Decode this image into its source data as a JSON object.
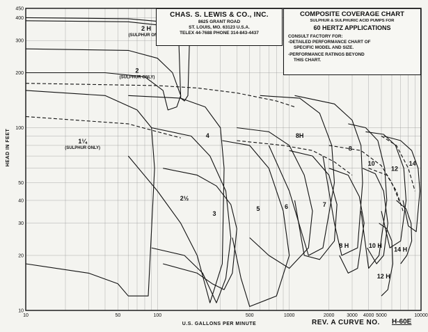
{
  "header": {
    "company": "CHAS. S. LEWIS & CO., INC.",
    "address1": "8625 GRANT ROAD",
    "address2": "ST. LOUIS, MO. 63123 U.S.A.",
    "address3": "TELEX 44-7688  PHONE 314-843-4437"
  },
  "title_box": {
    "title": "COMPOSITE COVERAGE CHART",
    "subtitle": "SULPHUR & SULPHURIC ACID PUMPS FOR",
    "frequency": "60 HERTZ APPLICATIONS",
    "note_head": "CONSULT FACTORY FOR:",
    "note1": "-DETAILED PERFORMANCE CHART OF",
    "note1b": "SPECIFIC MODEL AND SIZE.",
    "note2": "-PERFORMANCE RATINGS BEYOND",
    "note2b": "THIS CHART."
  },
  "footer": {
    "rev": "REV. A   CURVE NO.",
    "curve_no": "H-60E"
  },
  "chart_data": {
    "type": "line",
    "title": "COMPOSITE COVERAGE CHART",
    "xlabel": "U.S. GALLONS PER MINUTE",
    "ylabel": "HEAD IN FEET",
    "x_scale": "log",
    "y_scale": "log",
    "xlim": [
      10,
      10000
    ],
    "ylim": [
      10,
      450
    ],
    "x_ticks": [
      {
        "v": 10,
        "label": "10"
      },
      {
        "v": 50,
        "label": "50"
      },
      {
        "v": 100,
        "label": "100"
      },
      {
        "v": 500,
        "label": "500"
      },
      {
        "v": 1000,
        "label": "1000"
      },
      {
        "v": 2000,
        "label": "2000"
      },
      {
        "v": 3000,
        "label": "3000"
      },
      {
        "v": 4000,
        "label": "4000"
      },
      {
        "v": 5000,
        "label": "5000"
      },
      {
        "v": 10000,
        "label": "10000"
      }
    ],
    "y_ticks": [
      {
        "v": 10,
        "label": "10"
      },
      {
        "v": 20,
        "label": "20"
      },
      {
        "v": 30,
        "label": "30"
      },
      {
        "v": 40,
        "label": "40"
      },
      {
        "v": 50,
        "label": "50"
      },
      {
        "v": 100,
        "label": "100"
      },
      {
        "v": 200,
        "label": "200"
      },
      {
        "v": 300,
        "label": "300"
      },
      {
        "v": 400,
        "label": "400"
      },
      {
        "v": 450,
        "label": "450"
      }
    ],
    "grid": true,
    "series": [
      {
        "name": "2 H",
        "sub": "(SULPHUR ONLY)",
        "label_at": [
          82,
          340
        ],
        "dashed": false,
        "points": [
          [
            10,
            400
          ],
          [
            60,
            395
          ],
          [
            110,
            380
          ],
          [
            150,
            340
          ],
          [
            175,
            300
          ],
          [
            170,
            150
          ],
          [
            160,
            140
          ],
          [
            150,
            145
          ],
          [
            145,
            300
          ],
          [
            120,
            360
          ],
          [
            60,
            380
          ],
          [
            10,
            385
          ]
        ]
      },
      {
        "name": "2",
        "sub": "(SULPHUR ONLY)",
        "label_at": [
          70,
          200
        ],
        "dashed": false,
        "points": [
          [
            10,
            270
          ],
          [
            60,
            265
          ],
          [
            100,
            240
          ],
          [
            130,
            200
          ],
          [
            150,
            150
          ],
          [
            140,
            130
          ],
          [
            120,
            125
          ],
          [
            110,
            160
          ],
          [
            80,
            190
          ],
          [
            40,
            200
          ],
          [
            10,
            200
          ]
        ]
      },
      {
        "name": "1¼",
        "sub": "(SULPHUR ONLY)",
        "label_at": [
          27,
          82
        ],
        "dashed": false,
        "points": [
          [
            10,
            160
          ],
          [
            40,
            150
          ],
          [
            70,
            125
          ],
          [
            90,
            100
          ],
          [
            95,
            60
          ],
          [
            85,
            12
          ],
          [
            60,
            12
          ],
          [
            50,
            14
          ],
          [
            30,
            16
          ],
          [
            10,
            18
          ]
        ]
      },
      {
        "name": "4",
        "label_at": [
          240,
          88
        ],
        "dashed": false,
        "points": [
          [
            60,
            150
          ],
          [
            150,
            145
          ],
          [
            230,
            130
          ],
          [
            300,
            100
          ],
          [
            320,
            60
          ],
          [
            310,
            18
          ],
          [
            250,
            11
          ],
          [
            200,
            20
          ],
          [
            150,
            30
          ],
          [
            100,
            45
          ],
          [
            60,
            70
          ]
        ]
      },
      {
        "name": "2½",
        "label_at": [
          160,
          40
        ],
        "dashed": false,
        "points": [
          [
            90,
            100
          ],
          [
            180,
            90
          ],
          [
            250,
            70
          ],
          [
            330,
            45
          ],
          [
            360,
            25
          ],
          [
            330,
            15
          ],
          [
            280,
            11
          ],
          [
            220,
            16
          ],
          [
            160,
            20
          ],
          [
            90,
            22
          ]
        ]
      },
      {
        "name": "3",
        "label_at": [
          270,
          33
        ],
        "dashed": false,
        "points": [
          [
            110,
            60
          ],
          [
            200,
            55
          ],
          [
            280,
            48
          ],
          [
            360,
            38
          ],
          [
            400,
            28
          ],
          [
            370,
            16
          ],
          [
            320,
            13
          ],
          [
            260,
            14
          ],
          [
            200,
            16
          ],
          [
            110,
            18
          ]
        ]
      },
      {
        "name": "5",
        "label_at": [
          580,
          35
        ],
        "dashed": false,
        "points": [
          [
            310,
            85
          ],
          [
            500,
            80
          ],
          [
            700,
            60
          ],
          [
            900,
            35
          ],
          [
            1000,
            20
          ],
          [
            800,
            12
          ],
          [
            500,
            10.5
          ],
          [
            430,
            15
          ],
          [
            370,
            25
          ]
        ]
      },
      {
        "name": "6",
        "label_at": [
          950,
          36
        ],
        "dashed": false,
        "points": [
          [
            400,
            100
          ],
          [
            700,
            95
          ],
          [
            1000,
            80
          ],
          [
            1300,
            55
          ],
          [
            1500,
            35
          ],
          [
            1400,
            22
          ],
          [
            1000,
            17
          ],
          [
            700,
            20
          ],
          [
            500,
            25
          ]
        ]
      },
      {
        "name": "8H",
        "label_at": [
          1200,
          88
        ],
        "dashed": false,
        "points": [
          [
            600,
            150
          ],
          [
            1200,
            145
          ],
          [
            1700,
            120
          ],
          [
            2100,
            80
          ],
          [
            2200,
            50
          ],
          [
            1800,
            22
          ],
          [
            1400,
            20
          ],
          [
            1000,
            45
          ],
          [
            700,
            80
          ]
        ]
      },
      {
        "name": "7",
        "label_at": [
          1850,
          37
        ],
        "dashed": false,
        "points": [
          [
            1000,
            75
          ],
          [
            1500,
            70
          ],
          [
            2000,
            55
          ],
          [
            2300,
            38
          ],
          [
            2200,
            24
          ],
          [
            1700,
            19
          ],
          [
            1300,
            20
          ],
          [
            1100,
            40
          ]
        ]
      },
      {
        "name": "8",
        "label_at": [
          2900,
          75
        ],
        "dashed": false,
        "points": [
          [
            1100,
            150
          ],
          [
            2200,
            135
          ],
          [
            3000,
            110
          ],
          [
            3500,
            80
          ],
          [
            3600,
            50
          ],
          [
            3300,
            22
          ],
          [
            2500,
            20
          ],
          [
            2200,
            30
          ],
          [
            1800,
            70
          ]
        ]
      },
      {
        "name": "8 H",
        "label_at": [
          2600,
          22
        ],
        "dashed": false,
        "points": [
          [
            2000,
            60
          ],
          [
            2800,
            55
          ],
          [
            3400,
            42
          ],
          [
            3700,
            30
          ],
          [
            3300,
            17
          ],
          [
            2800,
            16
          ],
          [
            2400,
            20
          ]
        ]
      },
      {
        "name": "10",
        "label_at": [
          4200,
          62
        ],
        "dashed": false,
        "points": [
          [
            2800,
            105
          ],
          [
            3800,
            100
          ],
          [
            4700,
            85
          ],
          [
            5300,
            60
          ],
          [
            5500,
            40
          ],
          [
            4800,
            20
          ],
          [
            4000,
            17
          ],
          [
            3500,
            35
          ]
        ]
      },
      {
        "name": "10 H",
        "label_at": [
          4500,
          22
        ],
        "dashed": false,
        "points": [
          [
            3600,
            60
          ],
          [
            4500,
            56
          ],
          [
            5200,
            45
          ],
          [
            5600,
            30
          ],
          [
            5200,
            20
          ],
          [
            4600,
            18
          ],
          [
            3900,
            22
          ]
        ]
      },
      {
        "name": "12",
        "label_at": [
          6300,
          58
        ],
        "dashed": false,
        "points": [
          [
            3800,
            95
          ],
          [
            5200,
            92
          ],
          [
            6400,
            80
          ],
          [
            7400,
            60
          ],
          [
            7700,
            40
          ],
          [
            7000,
            24
          ],
          [
            5800,
            22
          ],
          [
            5000,
            35
          ]
        ]
      },
      {
        "name": "12 H",
        "label_at": [
          5200,
          15
        ],
        "dashed": false,
        "points": [
          [
            4800,
            30
          ],
          [
            5500,
            28
          ],
          [
            6000,
            24
          ],
          [
            6100,
            18
          ],
          [
            5600,
            13
          ],
          [
            5000,
            12
          ]
        ]
      },
      {
        "name": "14",
        "label_at": [
          8600,
          62
        ],
        "dashed": false,
        "points": [
          [
            5200,
            90
          ],
          [
            7000,
            85
          ],
          [
            8500,
            75
          ],
          [
            9500,
            60
          ],
          [
            9800,
            45
          ],
          [
            9200,
            27
          ],
          [
            8000,
            29
          ],
          [
            7300,
            40
          ]
        ]
      },
      {
        "name": "14 H",
        "label_at": [
          7000,
          21
        ],
        "dashed": false,
        "points": [
          [
            6500,
            40
          ],
          [
            7700,
            36
          ],
          [
            8400,
            30
          ],
          [
            8500,
            24
          ],
          [
            7800,
            20
          ],
          [
            7000,
            18
          ]
        ]
      },
      {
        "name": "",
        "dashed": true,
        "points": [
          [
            10,
            175
          ],
          [
            100,
            170
          ],
          [
            200,
            165
          ],
          [
            400,
            155
          ],
          [
            800,
            140
          ],
          [
            1100,
            130
          ]
        ]
      },
      {
        "name": "",
        "dashed": true,
        "points": [
          [
            10,
            115
          ],
          [
            60,
            105
          ],
          [
            100,
            95
          ],
          [
            150,
            88
          ]
        ]
      },
      {
        "name": "",
        "dashed": true,
        "points": [
          [
            400,
            85
          ],
          [
            900,
            80
          ],
          [
            1500,
            75
          ],
          [
            2200,
            65
          ],
          [
            3000,
            55
          ]
        ]
      },
      {
        "name": "",
        "dashed": true,
        "points": [
          [
            2000,
            80
          ],
          [
            3500,
            75
          ],
          [
            5000,
            62
          ],
          [
            6000,
            50
          ],
          [
            7000,
            38
          ]
        ]
      },
      {
        "name": "",
        "dashed": true,
        "points": [
          [
            4000,
            60
          ],
          [
            5500,
            55
          ],
          [
            6500,
            45
          ],
          [
            7300,
            35
          ]
        ]
      },
      {
        "name": "",
        "dashed": true,
        "points": [
          [
            5000,
            90
          ],
          [
            6500,
            80
          ],
          [
            8000,
            60
          ],
          [
            9000,
            45
          ]
        ]
      }
    ]
  }
}
